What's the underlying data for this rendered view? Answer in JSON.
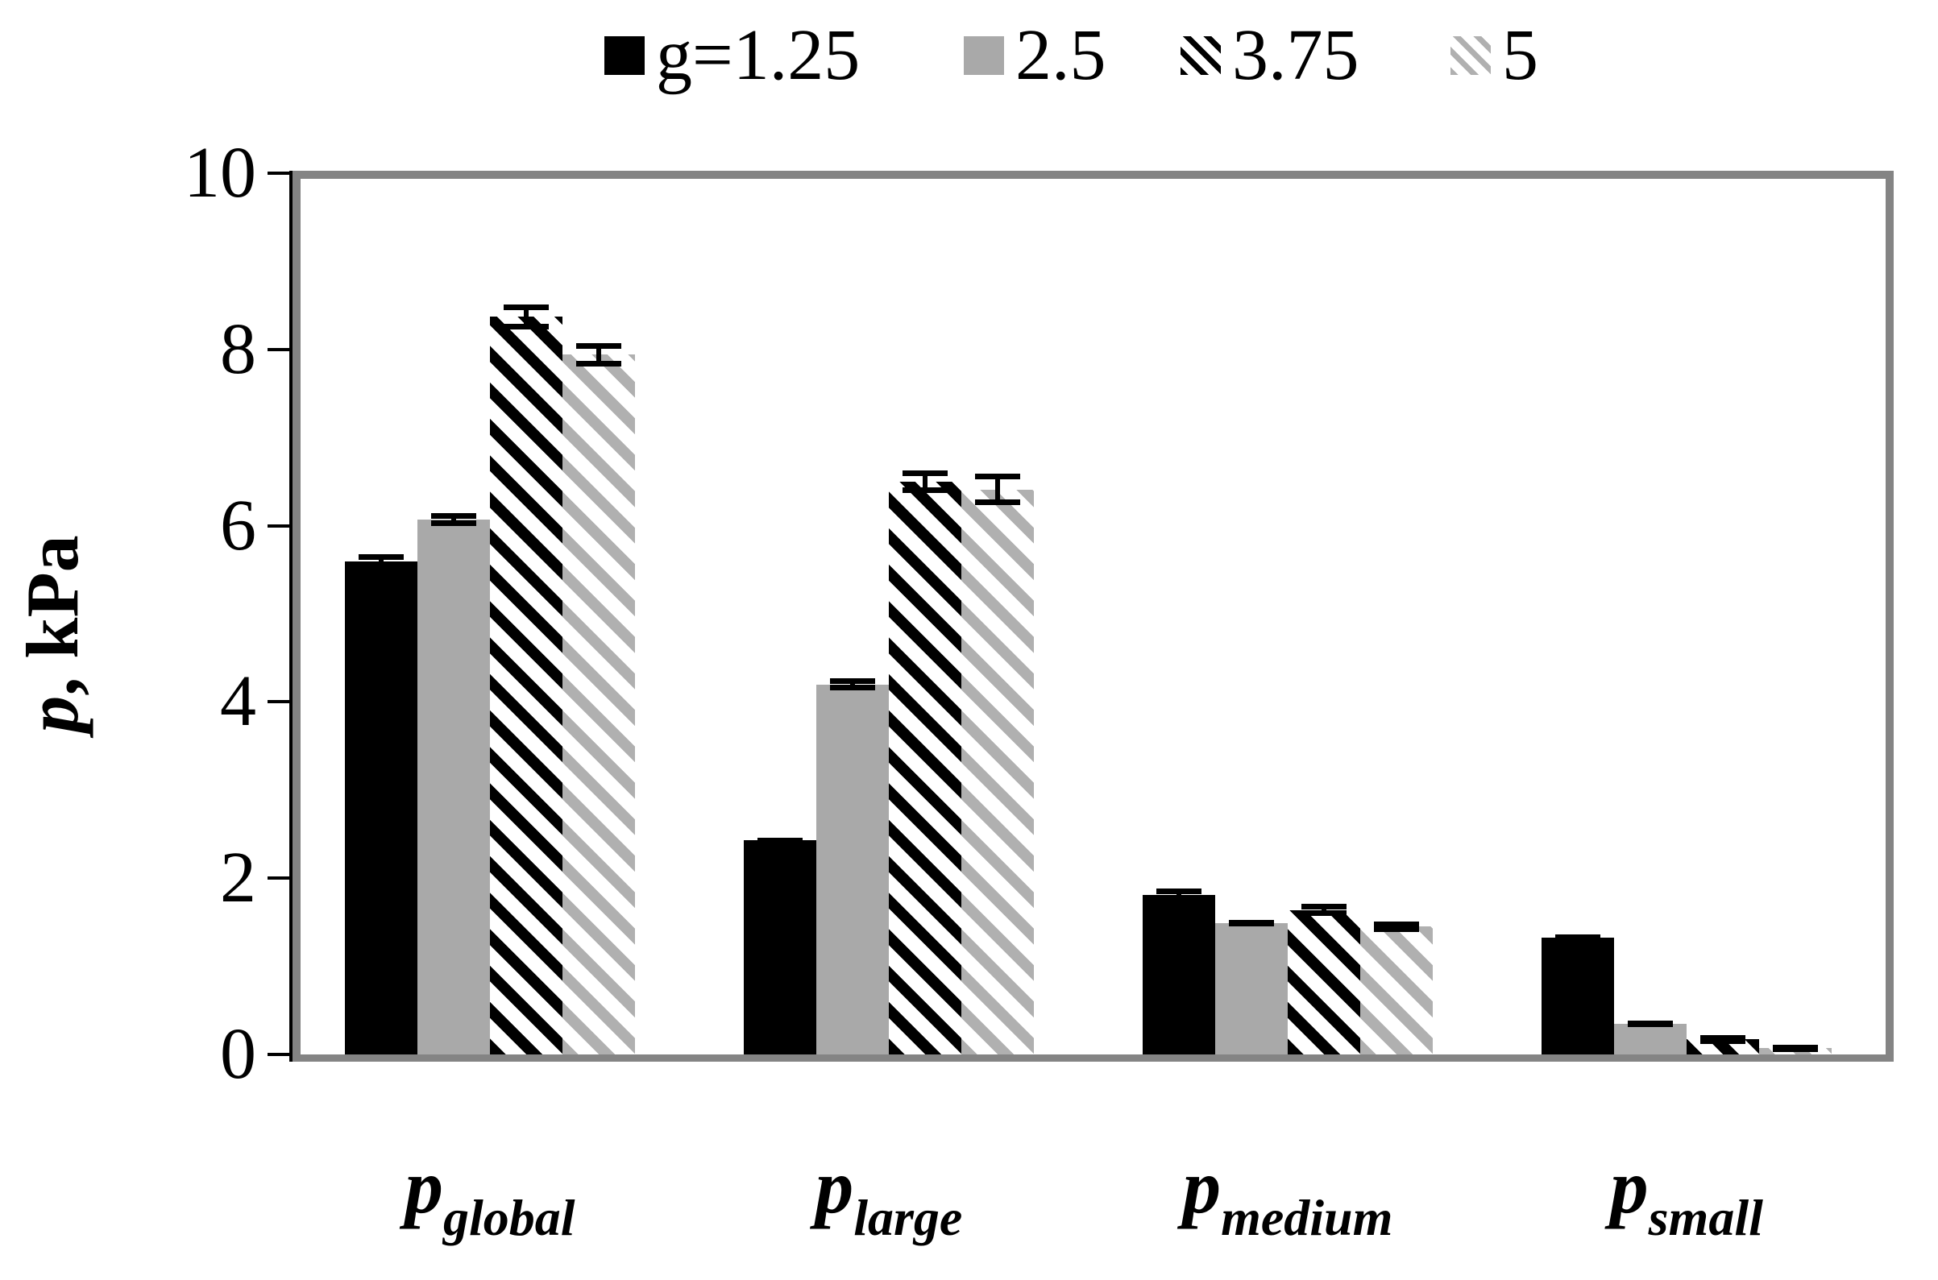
{
  "chart_data": {
    "type": "bar",
    "title": "",
    "ylabel": "p, kPa",
    "ylabel_italic_part": "p",
    "ylabel_plain_part": ", kPa",
    "ylim": [
      0,
      10
    ],
    "yticks": [
      0,
      2,
      4,
      6,
      8,
      10
    ],
    "grid": false,
    "legend_position": "top",
    "error_bars": true,
    "categories": [
      {
        "main": "p",
        "sub": "global"
      },
      {
        "main": "p",
        "sub": "large"
      },
      {
        "main": "p",
        "sub": "medium"
      },
      {
        "main": "p",
        "sub": "small"
      }
    ],
    "series": [
      {
        "name": "g=1.25",
        "style": "solid-black",
        "values": [
          5.59,
          2.43,
          1.81,
          1.33
        ],
        "errors": [
          0.09,
          0.03,
          0.07,
          0.03
        ]
      },
      {
        "name": "2.5",
        "style": "solid-gray",
        "values": [
          6.07,
          4.2,
          1.49,
          0.35
        ],
        "errors": [
          0.07,
          0.07,
          0.04,
          0.03
        ]
      },
      {
        "name": "3.75",
        "style": "hatch-black",
        "values": [
          8.37,
          6.5,
          1.64,
          0.17
        ],
        "errors": [
          0.14,
          0.13,
          0.07,
          0.05
        ]
      },
      {
        "name": "5",
        "style": "hatch-gray",
        "values": [
          7.94,
          6.41,
          1.45,
          0.07
        ],
        "errors": [
          0.13,
          0.18,
          0.06,
          0.04
        ]
      }
    ],
    "colors": {
      "solid_black": "#000000",
      "solid_gray": "#a9a9a9",
      "hatch_gray": "#b0b0b0",
      "frame": "#848484",
      "error_bar": "#000000"
    }
  }
}
